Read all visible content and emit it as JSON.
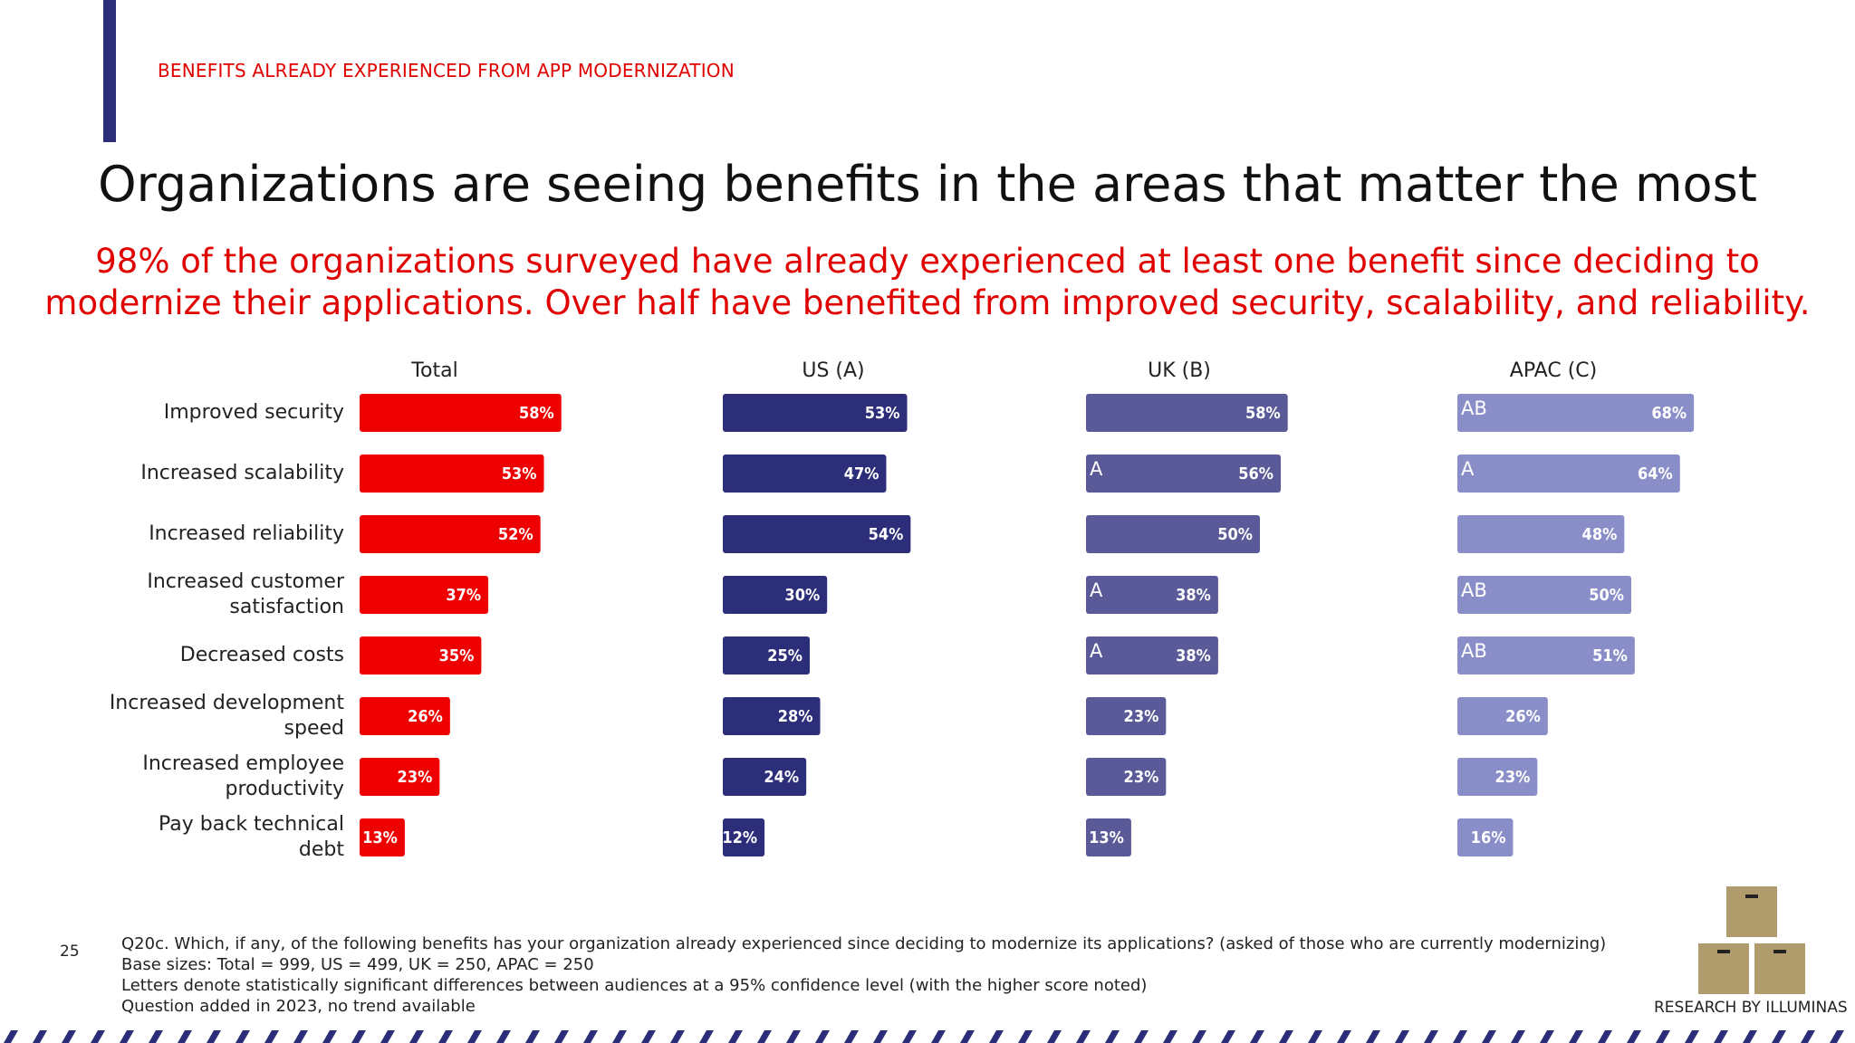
{
  "header": {
    "section": "BENEFITS ALREADY EXPERIENCED FROM APP MODERNIZATION",
    "title": "Organizations are seeing benefits in the areas that matter the most",
    "subtitle_lines": [
      "98% of the organizations surveyed have already experienced at least one benefit since deciding to",
      "modernize their applications. Over half have benefited from improved security, scalability, and reliability."
    ]
  },
  "chart_data": {
    "type": "bar",
    "orientation": "horizontal",
    "categories": [
      "Improved security",
      "Increased scalability",
      "Increased reliability",
      "Increased customer satisfaction",
      "Decreased costs",
      "Increased development speed",
      "Increased employee productivity",
      "Pay back technical debt"
    ],
    "series": [
      {
        "name": "Total",
        "color": "#ee0000",
        "values": [
          58,
          53,
          52,
          37,
          35,
          26,
          23,
          13
        ],
        "value_labels": [
          "58%",
          "53%",
          "52%",
          "37%",
          "35%",
          "26%",
          "23%",
          "13%"
        ]
      },
      {
        "name": "US (A)",
        "color": "#2d2e7a",
        "values": [
          53,
          47,
          54,
          30,
          25,
          28,
          24,
          12
        ],
        "value_labels": [
          "53%",
          "47%",
          "54%",
          "30%",
          "25%",
          "28%",
          "24%",
          "12%"
        ]
      },
      {
        "name": "UK (B)",
        "color": "#5a5a98",
        "values": [
          58,
          56,
          50,
          38,
          38,
          23,
          23,
          13
        ],
        "value_labels": [
          "58%",
          "56%",
          "50%",
          "38%",
          "38%",
          "23%",
          "23%",
          "13%"
        ],
        "significance": [
          null,
          "A",
          null,
          "A",
          "A",
          null,
          null,
          null
        ]
      },
      {
        "name": "APAC (C)",
        "color": "#8a8ec8",
        "values": [
          68,
          64,
          48,
          50,
          51,
          26,
          23,
          16
        ],
        "value_labels": [
          "68%",
          "64%",
          "48%",
          "50%",
          "51%",
          "26%",
          "23%",
          "16%"
        ],
        "significance": [
          "AB",
          "A",
          null,
          "AB",
          "AB",
          null,
          null,
          null
        ]
      }
    ]
  },
  "footnotes": [
    "Q20c.  Which, if any, of the following benefits has your organization already experienced since deciding to modernize its applications? (asked of those who are currently modernizing)",
    "Base sizes: Total = 999, US = 499, UK = 250, APAC = 250",
    "Letters denote statistically significant differences between audiences at a 95% confidence level (with the higher score noted)",
    "Question added in 2023, no trend available"
  ],
  "page_number": "25",
  "brand": "RESEARCH BY ILLUMINAS"
}
